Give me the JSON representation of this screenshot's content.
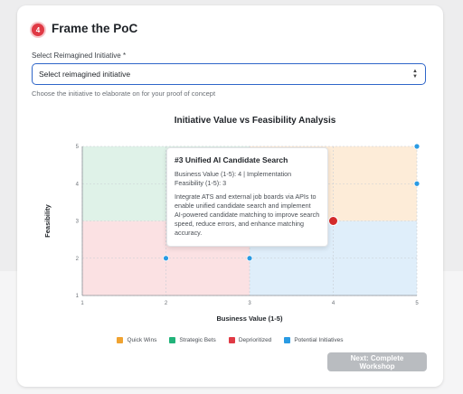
{
  "step": {
    "number": "4",
    "title": "Frame the PoC"
  },
  "select_field": {
    "label": "Select Reimagined Initiative *",
    "value": "Select reimagined initiative",
    "helper": "Choose the initiative to elaborate on for your proof of concept"
  },
  "chart_data": {
    "type": "scatter",
    "title": "Initiative Value vs Feasibility Analysis",
    "xlabel": "Business Value (1-5)",
    "ylabel": "Feasibility",
    "xlim": [
      1,
      5
    ],
    "ylim": [
      1,
      5
    ],
    "x_ticks": [
      "1",
      "2",
      "3",
      "4",
      "5"
    ],
    "y_ticks": [
      "1",
      "2",
      "3",
      "4",
      "5"
    ],
    "grid": true,
    "quadrants": [
      {
        "name": "Strategic Bets",
        "x_range": [
          1,
          3
        ],
        "y_range": [
          3,
          5
        ],
        "color": "#dff2e8"
      },
      {
        "name": "Quick Wins",
        "x_range": [
          3,
          5
        ],
        "y_range": [
          3,
          5
        ],
        "color": "#fdecd8"
      },
      {
        "name": "Deprioritized",
        "x_range": [
          1,
          3
        ],
        "y_range": [
          1,
          3
        ],
        "color": "#fbe1e3"
      },
      {
        "name": "Potential Initiatives",
        "x_range": [
          3,
          5
        ],
        "y_range": [
          1,
          3
        ],
        "color": "#dfeefa"
      }
    ],
    "points": [
      {
        "x": 2,
        "y": 2,
        "color": "#2a9be3",
        "highlight": false
      },
      {
        "x": 3,
        "y": 2,
        "color": "#2a9be3",
        "highlight": false
      },
      {
        "x": 4,
        "y": 3,
        "color": "#d42a2a",
        "highlight": true
      },
      {
        "x": 5,
        "y": 5,
        "color": "#2a9be3",
        "highlight": false
      },
      {
        "x": 5,
        "y": 4,
        "color": "#2a9be3",
        "highlight": false
      }
    ],
    "legend": [
      {
        "label": "Quick Wins",
        "color": "#f0a331"
      },
      {
        "label": "Strategic Bets",
        "color": "#22b37a"
      },
      {
        "label": "Deprioritized",
        "color": "#e03a45"
      },
      {
        "label": "Potential Initiatives",
        "color": "#2a9be3"
      }
    ],
    "legend_position": "bottom"
  },
  "tooltip": {
    "title": "#3 Unified AI Candidate Search",
    "metrics": "Business Value (1-5): 4 | Implementation Feasibility (1-5): 3",
    "description": "Integrate ATS and external job boards via APIs to enable unified candidate search and implement AI-powered candidate matching to improve search speed, reduce errors, and enhance matching accuracy."
  },
  "actions": {
    "next_label": "Next: Complete Workshop"
  }
}
